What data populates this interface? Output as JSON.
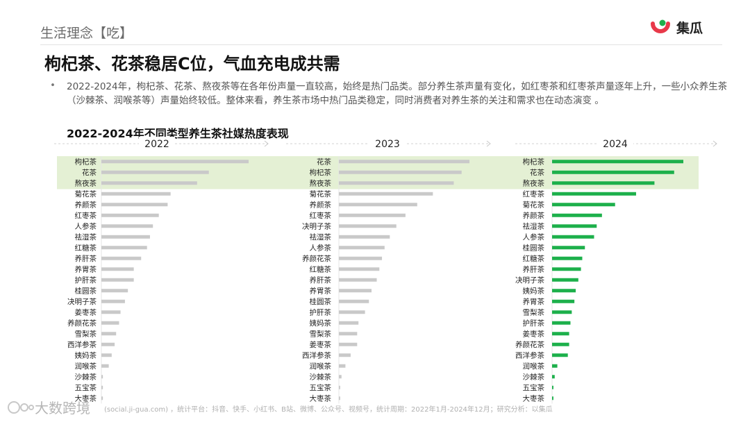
{
  "header": {
    "section_title": "生活理念【吃】",
    "logo_text": "集瓜",
    "main_title": "枸杞茶、花茶稳居C位，气血充电成共需",
    "bullet": "•",
    "description": "2022-2024年，枸杞茶、花茶、熬夜茶等在各年份声量一直较高，始终是热门品类。部分养生茶声量有变化，如红枣茶和红枣茶声量逐年上升，一些小众养生茶（沙棘茶、润喉茶等）声量始终较低。整体来看，养生茶市场中热门品类稳定，同时消费者对养生茶的关注和需求也在动态演变 。"
  },
  "chart_title": "2022-2024年不同类型养生茶社媒热度表现",
  "colors": {
    "bar_gray": "#c9c9c9",
    "bar_green": "#1db04b",
    "highlight": "#e4f0d4",
    "brand_red": "#e8394a"
  },
  "chart_data": [
    {
      "type": "bar",
      "orientation": "horizontal",
      "year": "2022",
      "categories": [
        "枸杞茶",
        "花茶",
        "熬夜茶",
        "菊花茶",
        "养颜茶",
        "红枣茶",
        "人参茶",
        "祛湿茶",
        "红糖茶",
        "养肝茶",
        "养胃茶",
        "护肝茶",
        "桂圆茶",
        "决明子茶",
        "姜枣茶",
        "养颜花茶",
        "雪梨茶",
        "西洋参茶",
        "姨妈茶",
        "润喉茶",
        "沙棘茶",
        "五宝茶",
        "大枣茶"
      ],
      "values": [
        100,
        73,
        65,
        47,
        45,
        39,
        35,
        33,
        31,
        27,
        22,
        22,
        18,
        16,
        13,
        12,
        10,
        9,
        7,
        5,
        1,
        1,
        1
      ]
    },
    {
      "type": "bar",
      "orientation": "horizontal",
      "year": "2023",
      "categories": [
        "花茶",
        "枸杞茶",
        "熬夜茶",
        "菊花茶",
        "养颜茶",
        "红枣茶",
        "决明子茶",
        "祛湿茶",
        "人参茶",
        "养颜花茶",
        "红糖茶",
        "养肝茶",
        "养胃茶",
        "桂圆茶",
        "护肝茶",
        "姨妈茶",
        "雪梨茶",
        "姜枣茶",
        "西洋参茶",
        "润喉茶",
        "沙棘茶",
        "五宝茶",
        "大枣茶"
      ],
      "values": [
        100,
        94,
        88,
        72,
        60,
        51,
        44,
        39,
        35,
        33,
        31,
        29,
        25,
        23,
        20,
        15,
        14,
        14,
        9,
        5,
        2,
        1,
        1
      ]
    },
    {
      "type": "bar",
      "orientation": "horizontal",
      "year": "2024",
      "categories": [
        "枸杞茶",
        "花茶",
        "熬夜茶",
        "红枣茶",
        "菊花茶",
        "养颜茶",
        "祛湿茶",
        "人参茶",
        "桂圆茶",
        "红糖茶",
        "养肝茶",
        "决明子茶",
        "姨妈茶",
        "养胃茶",
        "雪梨茶",
        "护肝茶",
        "姜枣茶",
        "养颜花茶",
        "西洋参茶",
        "润喉茶",
        "沙棘茶",
        "五宝茶",
        "大枣茶"
      ],
      "values": [
        100,
        93,
        78,
        64,
        48,
        38,
        34,
        32,
        25,
        23,
        22,
        20,
        18,
        17,
        15,
        14,
        13,
        13,
        12,
        4,
        2,
        1,
        1
      ]
    }
  ],
  "highlight_top_rows": 3,
  "footer": {
    "watermark": "大数跨境",
    "source": "(social.ji-gua.com) ，统计平台：抖音、快手、小红书、B站、微博、公众号、视频号，统计周期：2022年1月-2024年12月；研究分析：以集瓜"
  }
}
